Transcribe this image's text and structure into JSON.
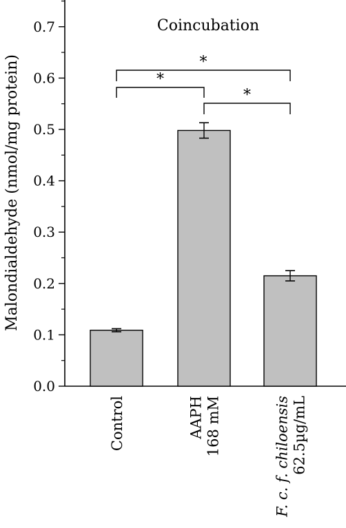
{
  "chart_data": {
    "type": "bar",
    "title": "Coincubation",
    "ylabel": "Malondialdehyde (nmol/mg protein)",
    "xlabel": "",
    "ylim": [
      0,
      0.75
    ],
    "yticks": [
      "0.0",
      "0.1",
      "0.2",
      "0.3",
      "0.4",
      "0.5",
      "0.6",
      "0.7"
    ],
    "categories": [
      {
        "lines": [
          "Control"
        ],
        "italic_prefix": ""
      },
      {
        "lines": [
          "AAPH",
          "168 mM"
        ],
        "italic_prefix": ""
      },
      {
        "lines": [
          "F. c. f. chiloensis",
          "62.5µg/mL"
        ],
        "italic_prefix": "F. c. f. chiloensis"
      }
    ],
    "values": [
      0.109,
      0.498,
      0.215
    ],
    "errors": [
      0.003,
      0.015,
      0.01
    ],
    "bar_color": "#c0c0c0",
    "significance": [
      {
        "from": 0,
        "to": 1,
        "label": "*"
      },
      {
        "from": 0,
        "to": 2,
        "label": "*"
      },
      {
        "from": 1,
        "to": 2,
        "label": "*"
      }
    ]
  }
}
